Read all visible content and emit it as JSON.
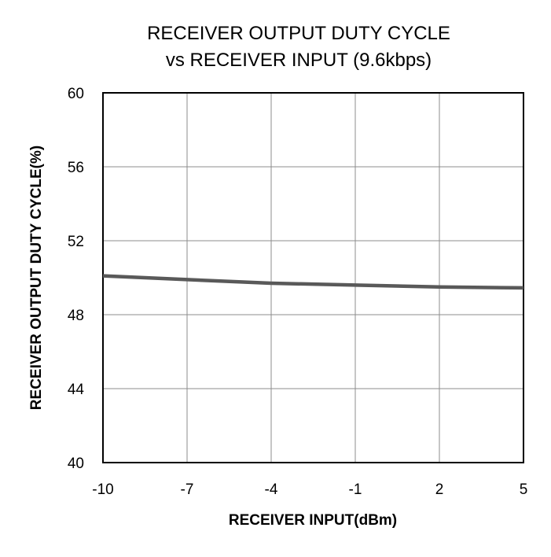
{
  "chart_data": {
    "type": "line",
    "title_line1": "RECEIVER OUTPUT DUTY CYCLE",
    "title_line2": "vs RECEIVER INPUT (9.6kbps)",
    "xlabel": "RECEIVER INPUT(dBm)",
    "ylabel": "RECEIVER OUTPUT DUTY CYCLE(%)",
    "xlim": [
      -10,
      5
    ],
    "ylim": [
      40,
      60
    ],
    "x_ticks": [
      -10,
      -7,
      -4,
      -1,
      2,
      5
    ],
    "y_ticks": [
      40,
      44,
      48,
      52,
      56,
      60
    ],
    "grid": true,
    "series": [
      {
        "x": [
          -10,
          -7,
          -4,
          -1,
          2,
          5
        ],
        "y": [
          50.1,
          49.9,
          49.7,
          49.6,
          49.5,
          49.45
        ],
        "color": "#595959"
      }
    ]
  }
}
